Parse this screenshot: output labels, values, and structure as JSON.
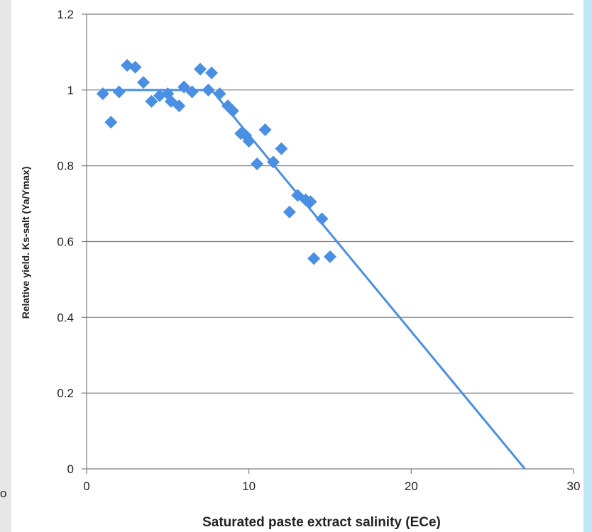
{
  "chart_data": {
    "type": "scatter",
    "xlabel": "Saturated paste extract salinity (ECe)",
    "ylabel": "Relative yield. Ks-salt (Ya/Ymax)",
    "xlim": [
      0,
      30
    ],
    "ylim": [
      0,
      1.2
    ],
    "x_ticks": [
      "0",
      "10",
      "20",
      "30"
    ],
    "y_ticks": [
      "0",
      "0.2",
      "0.4",
      "0.6",
      "0.8",
      "1",
      "1.2"
    ],
    "grid": "horizontal",
    "marker": "diamond",
    "series": [
      {
        "points": [
          [
            1.0,
            0.99
          ],
          [
            1.5,
            0.915
          ],
          [
            2.0,
            0.995
          ],
          [
            2.5,
            1.065
          ],
          [
            3.0,
            1.06
          ],
          [
            3.5,
            1.02
          ],
          [
            4.0,
            0.97
          ],
          [
            4.5,
            0.985
          ],
          [
            5.0,
            0.99
          ],
          [
            5.2,
            0.97
          ],
          [
            5.7,
            0.958
          ],
          [
            6.0,
            1.008
          ],
          [
            6.5,
            0.995
          ],
          [
            7.0,
            1.055
          ],
          [
            7.5,
            1.0
          ],
          [
            7.7,
            1.045
          ],
          [
            8.2,
            0.99
          ],
          [
            8.7,
            0.958
          ],
          [
            9.0,
            0.945
          ],
          [
            9.5,
            0.885
          ],
          [
            9.8,
            0.88
          ],
          [
            10.0,
            0.865
          ],
          [
            10.5,
            0.805
          ],
          [
            11.0,
            0.895
          ],
          [
            11.5,
            0.81
          ],
          [
            12.0,
            0.845
          ],
          [
            12.5,
            0.678
          ],
          [
            13.0,
            0.722
          ],
          [
            13.5,
            0.71
          ],
          [
            13.8,
            0.705
          ],
          [
            14.0,
            0.555
          ],
          [
            14.5,
            0.66
          ],
          [
            15.0,
            0.56
          ]
        ]
      }
    ],
    "fit_line": [
      [
        1.0,
        1.0
      ],
      [
        7.7,
        1.0
      ],
      [
        27.0,
        0.0
      ]
    ],
    "colors": {
      "marker": "#4a8fe3",
      "line": "#4a8fe3",
      "grid": "#7f7f7f",
      "axis": "#7f7f7f"
    },
    "stray_mark": "o"
  }
}
